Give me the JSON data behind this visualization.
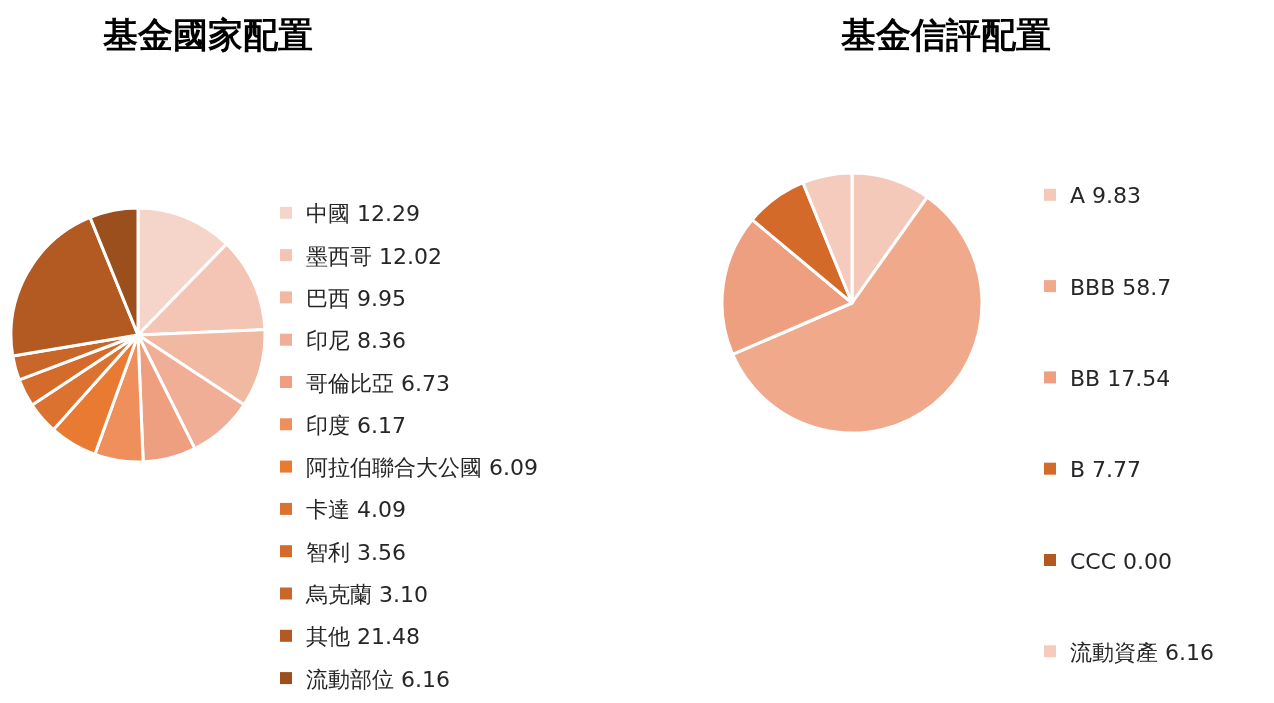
{
  "chart_data": [
    {
      "type": "pie",
      "title": "基金國家配置",
      "categories": [
        "中國",
        "墨西哥",
        "巴西",
        "印尼",
        "哥倫比亞",
        "印度",
        "阿拉伯聯合大公國",
        "卡達",
        "智利",
        "烏克蘭",
        "其他",
        "流動部位"
      ],
      "values": [
        12.29,
        12.02,
        9.95,
        8.36,
        6.73,
        6.17,
        6.09,
        4.09,
        3.56,
        3.1,
        21.48,
        6.16
      ],
      "value_labels": [
        "12.29",
        "12.02",
        "9.95",
        "8.36",
        "6.73",
        "6.17",
        "6.09",
        "4.09",
        "3.56",
        "3.10",
        "21.48",
        "6.16"
      ],
      "colors": [
        "#f5d5ca",
        "#f4c5b5",
        "#f1b9a2",
        "#f0ae96",
        "#ee9f7f",
        "#ee8f5c",
        "#e97a32",
        "#dc7230",
        "#d56b2b",
        "#c9662a",
        "#b35a22",
        "#9a4f1c"
      ],
      "legend": "right"
    },
    {
      "type": "pie",
      "title": "基金信評配置",
      "categories": [
        "A",
        "BBB",
        "BB",
        "B",
        "CCC",
        "流動資產"
      ],
      "values": [
        9.83,
        58.7,
        17.54,
        7.77,
        0,
        6.16
      ],
      "value_labels": [
        "9.83",
        "58.7",
        "17.54",
        "7.77",
        "0.00",
        "6.16"
      ],
      "colors": [
        "#f5c9ba",
        "#f0a98b",
        "#ee9f7f",
        "#d46a2a",
        "#b35a22",
        "#f5cbbd"
      ],
      "legend": "right"
    }
  ]
}
